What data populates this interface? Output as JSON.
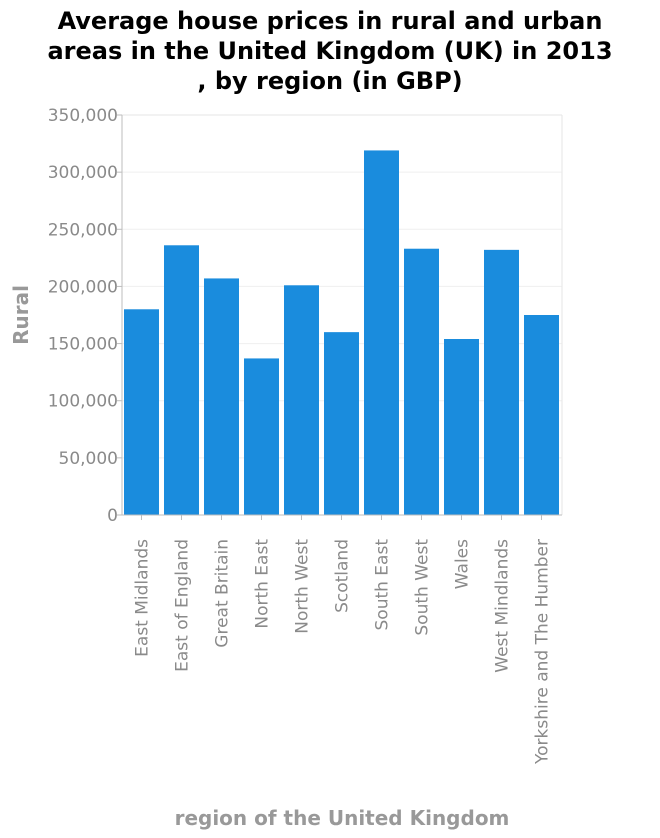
{
  "chart_data": {
    "type": "bar",
    "title_lines": [
      "Average house prices in rural and urban",
      "areas in the United Kingdom (UK) in 2013",
      ", by region (in GBP)"
    ],
    "xlabel": "region of the United Kingdom",
    "ylabel": "Rural",
    "categories": [
      "East Midlands",
      "East of England",
      "Great Britain",
      "North East",
      "North West",
      "Scotland",
      "South East",
      "South West",
      "Wales",
      "West Mindlands",
      "Yorkshire and The Humber"
    ],
    "values": [
      180000,
      236000,
      207000,
      137000,
      201000,
      160000,
      319000,
      233000,
      154000,
      232000,
      175000
    ],
    "ylim": [
      0,
      350000
    ],
    "yticks": [
      0,
      50000,
      100000,
      150000,
      200000,
      250000,
      300000,
      350000
    ],
    "ytick_labels": [
      "0",
      "50,000",
      "100,000",
      "150,000",
      "200,000",
      "250,000",
      "300,000",
      "350,000"
    ],
    "bar_color": "#1a8cdd",
    "grid": true
  }
}
